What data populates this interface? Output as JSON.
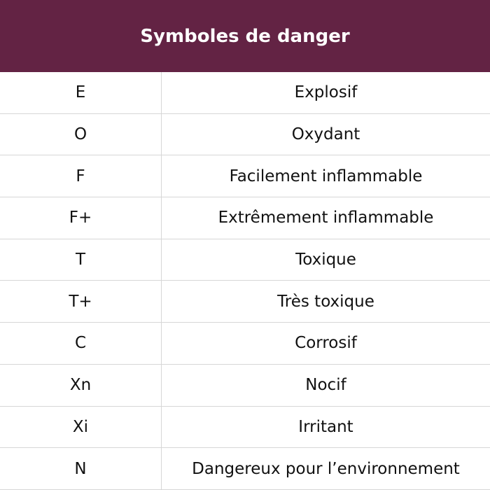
{
  "title": "Symboles de danger",
  "colors": {
    "header_bg": "#632344",
    "header_text": "#ffffff",
    "border": "#d6d6d6"
  },
  "rows": [
    {
      "code": "E",
      "label": "Explosif"
    },
    {
      "code": "O",
      "label": "Oxydant"
    },
    {
      "code": "F",
      "label": "Facilement inflammable"
    },
    {
      "code": "F+",
      "label": "Extrêmement inflammable"
    },
    {
      "code": "T",
      "label": "Toxique"
    },
    {
      "code": "T+",
      "label": "Très toxique"
    },
    {
      "code": "C",
      "label": "Corrosif"
    },
    {
      "code": "Xn",
      "label": "Nocif"
    },
    {
      "code": "Xi",
      "label": "Irritant"
    },
    {
      "code": "N",
      "label": "Dangereux pour l’environnement"
    }
  ]
}
